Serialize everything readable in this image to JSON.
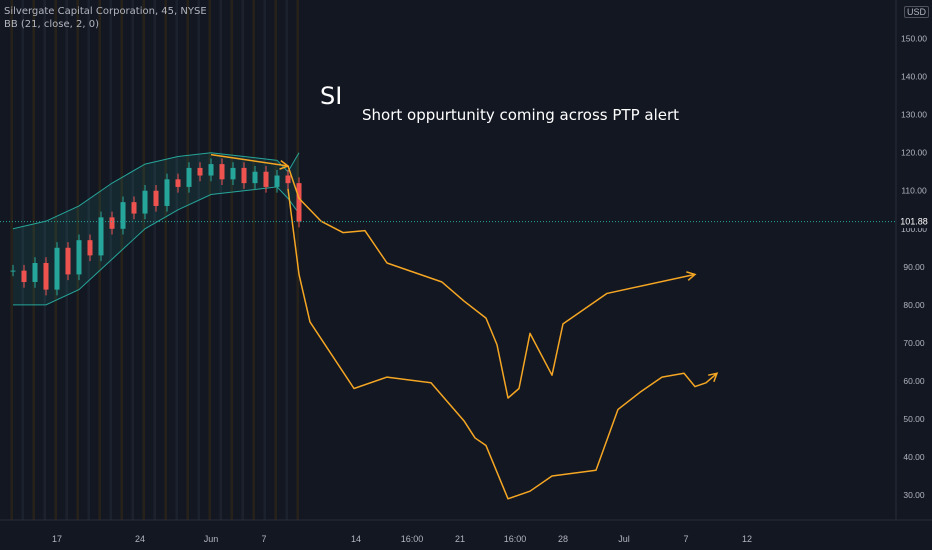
{
  "header": {
    "symbol_line": "Silvergate Capital Corporation, 45, NYSE",
    "indicator_line": "BB (21, close, 2, 0)"
  },
  "annotations": {
    "ticker": "SI",
    "note": "Short oppurtunity coming across PTP alert"
  },
  "price_axis": {
    "currency": "USD",
    "current_price": "101.88",
    "ticks": [
      "150.00",
      "140.00",
      "130.00",
      "120.00",
      "110.00",
      "100.00",
      "90.00",
      "80.00",
      "70.00",
      "60.00",
      "50.00",
      "40.00",
      "30.00"
    ]
  },
  "time_axis": {
    "ticks": [
      "17",
      "24",
      "Jun",
      "7",
      "14",
      "16:00",
      "21",
      "16:00",
      "28",
      "Jul",
      "7",
      "12"
    ]
  },
  "colors": {
    "background": "#131722",
    "drawing": "#f5a623",
    "band": "#26a69a",
    "price_line": "#26a69a",
    "candle_up": "#26a69a",
    "candle_down": "#ef5350"
  },
  "chart_data": {
    "type": "line",
    "ylim": [
      25,
      157
    ],
    "current_price": 101.88,
    "series": [
      {
        "values": [
          {
            "x": "Jun 7",
            "y": 116.5
          },
          {
            "x": "Jun 8",
            "y": 108
          },
          {
            "x": "Jun 10",
            "y": 102
          },
          {
            "x": "Jun 12",
            "y": 99
          },
          {
            "x": "Jun 14",
            "y": 99.5
          },
          {
            "x": "Jun 16",
            "y": 91
          },
          {
            "x": "Jun 21",
            "y": 86
          },
          {
            "x": "Jun 23",
            "y": 81
          },
          {
            "x": "Jun 25",
            "y": 76.5
          },
          {
            "x": "Jun 26",
            "y": 69.5
          },
          {
            "x": "Jun 27",
            "y": 55.5
          },
          {
            "x": "Jun 28",
            "y": 58
          },
          {
            "x": "Jun 29",
            "y": 72.5
          },
          {
            "x": "Jul 1",
            "y": 61.5
          },
          {
            "x": "Jul 2",
            "y": 75
          },
          {
            "x": "Jul 6",
            "y": 83
          },
          {
            "x": "Jul 14",
            "y": 88
          }
        ]
      },
      {
        "values": [
          {
            "x": "Jun 7",
            "y": 110.5
          },
          {
            "x": "Jun 8",
            "y": 88
          },
          {
            "x": "Jun 9",
            "y": 75.5
          },
          {
            "x": "Jun 13",
            "y": 58
          },
          {
            "x": "Jun 16",
            "y": 61
          },
          {
            "x": "Jun 20",
            "y": 59.5
          },
          {
            "x": "Jun 23",
            "y": 49.5
          },
          {
            "x": "Jun 24",
            "y": 45
          },
          {
            "x": "Jun 25",
            "y": 43
          },
          {
            "x": "Jun 26",
            "y": 36
          },
          {
            "x": "Jun 27",
            "y": 29
          },
          {
            "x": "Jun 29",
            "y": 31
          },
          {
            "x": "Jul 1",
            "y": 35
          },
          {
            "x": "Jul 5",
            "y": 36.5
          },
          {
            "x": "Jul 7",
            "y": 52.5
          },
          {
            "x": "Jul 9",
            "y": 57
          },
          {
            "x": "Jul 11",
            "y": 61
          },
          {
            "x": "Jul 13",
            "y": 62
          },
          {
            "x": "Jul 14",
            "y": 58.5
          },
          {
            "x": "Jul 15",
            "y": 59.5
          },
          {
            "x": "Jul 16",
            "y": 62
          }
        ]
      },
      {
        "values": [
          {
            "x": "May 31",
            "y": 119.5
          },
          {
            "x": "Jun 7",
            "y": 116.5
          }
        ]
      }
    ],
    "price_history": [
      {
        "x": "May 13",
        "y": 89
      },
      {
        "x": "May 14",
        "y": 86
      },
      {
        "x": "May 15",
        "y": 91
      },
      {
        "x": "May 16",
        "y": 84
      },
      {
        "x": "May 17",
        "y": 95
      },
      {
        "x": "May 18",
        "y": 88
      },
      {
        "x": "May 19",
        "y": 97
      },
      {
        "x": "May 20",
        "y": 93
      },
      {
        "x": "May 21",
        "y": 103
      },
      {
        "x": "May 22",
        "y": 100
      },
      {
        "x": "May 23",
        "y": 107
      },
      {
        "x": "May 24",
        "y": 104
      },
      {
        "x": "May 25",
        "y": 110
      },
      {
        "x": "May 26",
        "y": 106
      },
      {
        "x": "May 27",
        "y": 113
      },
      {
        "x": "May 28",
        "y": 111
      },
      {
        "x": "May 29",
        "y": 116
      },
      {
        "x": "May 30",
        "y": 114
      },
      {
        "x": "May 31",
        "y": 117
      },
      {
        "x": "Jun 1",
        "y": 113
      },
      {
        "x": "Jun 2",
        "y": 116
      },
      {
        "x": "Jun 3",
        "y": 112
      },
      {
        "x": "Jun 4",
        "y": 115
      },
      {
        "x": "Jun 5",
        "y": 111
      },
      {
        "x": "Jun 6",
        "y": 114
      },
      {
        "x": "Jun 7",
        "y": 112
      },
      {
        "x": "Jun 8",
        "y": 101.88
      }
    ],
    "upper_band": [
      {
        "x": "May 13",
        "y": 100
      },
      {
        "x": "May 16",
        "y": 102
      },
      {
        "x": "May 19",
        "y": 106
      },
      {
        "x": "May 22",
        "y": 112
      },
      {
        "x": "May 25",
        "y": 117
      },
      {
        "x": "May 28",
        "y": 119
      },
      {
        "x": "May 31",
        "y": 120
      },
      {
        "x": "Jun 3",
        "y": 119
      },
      {
        "x": "Jun 6",
        "y": 118
      },
      {
        "x": "Jun 7",
        "y": 115
      },
      {
        "x": "Jun 8",
        "y": 120
      }
    ],
    "lower_band": [
      {
        "x": "May 13",
        "y": 80
      },
      {
        "x": "May 16",
        "y": 80
      },
      {
        "x": "May 19",
        "y": 84
      },
      {
        "x": "May 22",
        "y": 92
      },
      {
        "x": "May 25",
        "y": 100
      },
      {
        "x": "May 28",
        "y": 105
      },
      {
        "x": "May 31",
        "y": 109
      },
      {
        "x": "Jun 3",
        "y": 110
      },
      {
        "x": "Jun 6",
        "y": 111
      },
      {
        "x": "Jun 7",
        "y": 108
      },
      {
        "x": "Jun 8",
        "y": 104
      }
    ]
  }
}
